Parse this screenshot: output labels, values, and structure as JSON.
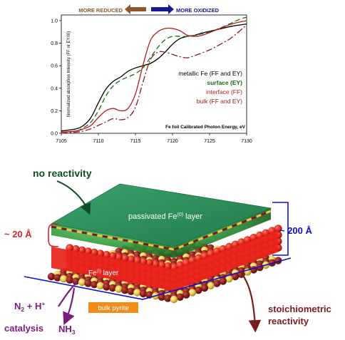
{
  "figure": {
    "header": {
      "reduced_label": "MORE REDUCED",
      "oxidized_label": "MORE OXIDIZED"
    },
    "colors": {
      "reduced_arrow": "#8b5a2b",
      "oxidized_arrow": "#1a1a8c",
      "green_layer": "#2f8f5b",
      "red_layer": "#e8241c",
      "blue_annot": "#1010cc",
      "red_annot": "#d4262a",
      "dark_red": "#7a1c1c",
      "purple": "#7d1a7d",
      "orange_box": "#f08c1a",
      "dark_green_text": "#0e4d22"
    },
    "legend": [
      {
        "text": "metallic Fe (FF and EY)",
        "color": "#000000"
      },
      {
        "text": "surface (EY)",
        "color": "#1a6b1a"
      },
      {
        "text": "interface (FF)",
        "color": "#b31b1b"
      },
      {
        "text": "bulk (FF and EY)",
        "color": "#8b1a1a"
      }
    ],
    "annotations": {
      "no_reactivity": "no reactivity",
      "passivated_main": "passivated Fe",
      "passivated_sup": "(0)",
      "passivated_tail": " layer",
      "fe1_main": "Fe",
      "fe1_sup": "(I)",
      "fe1_tail": " layer",
      "bulk_pyrite": "bulk pyrite",
      "depth_20": "~ 20 Å",
      "depth_200": "~ 200 Å",
      "n2_main": "N",
      "n2_sub": "2",
      "n2_mid": " + H",
      "n2_sup": "+",
      "nh3_main": "NH",
      "nh3_sub": "3",
      "catalysis": "catalysis",
      "stoich_1": "stoichiometric",
      "stoich_2": "reactivity"
    }
  },
  "chart_data": {
    "type": "line",
    "xlabel": "Fe foil Calibrated Photon Energy, eV",
    "ylabel": "Normalized absorption Intensity (FF or EY/I0)",
    "xlim": [
      7105,
      7130
    ],
    "ylim": [
      0,
      1.05
    ],
    "x_ticks": [
      "7105",
      "7110",
      "7115",
      "7120",
      "7125",
      "7130"
    ],
    "y_ticks": [
      "0.0",
      "0.2",
      "0.4",
      "0.6",
      "0.8",
      "1.0"
    ],
    "grid": false,
    "legend_position": "right",
    "series": [
      {
        "name": "metallic Fe (FF and EY)",
        "color": "#000000",
        "dash": "",
        "points": [
          [
            7105,
            0.02
          ],
          [
            7107,
            0.04
          ],
          [
            7108,
            0.07
          ],
          [
            7109,
            0.14
          ],
          [
            7110,
            0.27
          ],
          [
            7111,
            0.39
          ],
          [
            7112,
            0.46
          ],
          [
            7113,
            0.5
          ],
          [
            7114,
            0.55
          ],
          [
            7115,
            0.58
          ],
          [
            7116,
            0.6
          ],
          [
            7117,
            0.62
          ],
          [
            7118,
            0.66
          ],
          [
            7119,
            0.72
          ],
          [
            7120,
            0.79
          ],
          [
            7121,
            0.84
          ],
          [
            7122,
            0.86
          ],
          [
            7123,
            0.87
          ],
          [
            7124,
            0.89
          ],
          [
            7126,
            0.92
          ],
          [
            7128,
            0.95
          ],
          [
            7130,
            0.97
          ]
        ]
      },
      {
        "name": "surface (EY)",
        "color": "#1a6b1a",
        "dash": "7,4",
        "points": [
          [
            7105,
            0.01
          ],
          [
            7107,
            0.02
          ],
          [
            7108,
            0.05
          ],
          [
            7109,
            0.1
          ],
          [
            7110,
            0.2
          ],
          [
            7111,
            0.33
          ],
          [
            7112,
            0.42
          ],
          [
            7113,
            0.47
          ],
          [
            7114,
            0.5
          ],
          [
            7115,
            0.53
          ],
          [
            7116,
            0.58
          ],
          [
            7117,
            0.67
          ],
          [
            7118,
            0.76
          ],
          [
            7119,
            0.83
          ],
          [
            7120,
            0.86
          ],
          [
            7121,
            0.86
          ],
          [
            7122,
            0.86
          ],
          [
            7123,
            0.87
          ],
          [
            7125,
            0.9
          ],
          [
            7127,
            0.95
          ],
          [
            7129,
            1.01
          ],
          [
            7130,
            1.03
          ]
        ]
      },
      {
        "name": "interface (FF)",
        "color": "#b31b1b",
        "dash": "",
        "points": [
          [
            7105,
            0.01
          ],
          [
            7107,
            0.02
          ],
          [
            7108,
            0.04
          ],
          [
            7109,
            0.07
          ],
          [
            7110,
            0.14
          ],
          [
            7111,
            0.2
          ],
          [
            7112,
            0.22
          ],
          [
            7113,
            0.2
          ],
          [
            7114,
            0.22
          ],
          [
            7115,
            0.35
          ],
          [
            7116,
            0.6
          ],
          [
            7117,
            0.82
          ],
          [
            7118,
            0.9
          ],
          [
            7119,
            0.93
          ],
          [
            7120,
            0.93
          ],
          [
            7121,
            0.91
          ],
          [
            7122,
            0.87
          ],
          [
            7123,
            0.86
          ],
          [
            7124,
            0.87
          ],
          [
            7126,
            0.92
          ],
          [
            7128,
            0.97
          ],
          [
            7130,
            1.0
          ]
        ]
      },
      {
        "name": "bulk (FF and EY)",
        "color": "#8b1a1a",
        "dash": "9,3,2,3",
        "points": [
          [
            7105,
            0.0
          ],
          [
            7107,
            0.01
          ],
          [
            7108,
            0.02
          ],
          [
            7109,
            0.04
          ],
          [
            7110,
            0.07
          ],
          [
            7111,
            0.1
          ],
          [
            7112,
            0.13
          ],
          [
            7113,
            0.12
          ],
          [
            7114,
            0.14
          ],
          [
            7115,
            0.23
          ],
          [
            7116,
            0.45
          ],
          [
            7117,
            0.65
          ],
          [
            7118,
            0.72
          ],
          [
            7119,
            0.72
          ],
          [
            7120,
            0.7
          ],
          [
            7121,
            0.68
          ],
          [
            7122,
            0.67
          ],
          [
            7123,
            0.69
          ],
          [
            7125,
            0.74
          ],
          [
            7127,
            0.81
          ],
          [
            7128,
            0.85
          ],
          [
            7130,
            0.96
          ]
        ]
      }
    ]
  }
}
